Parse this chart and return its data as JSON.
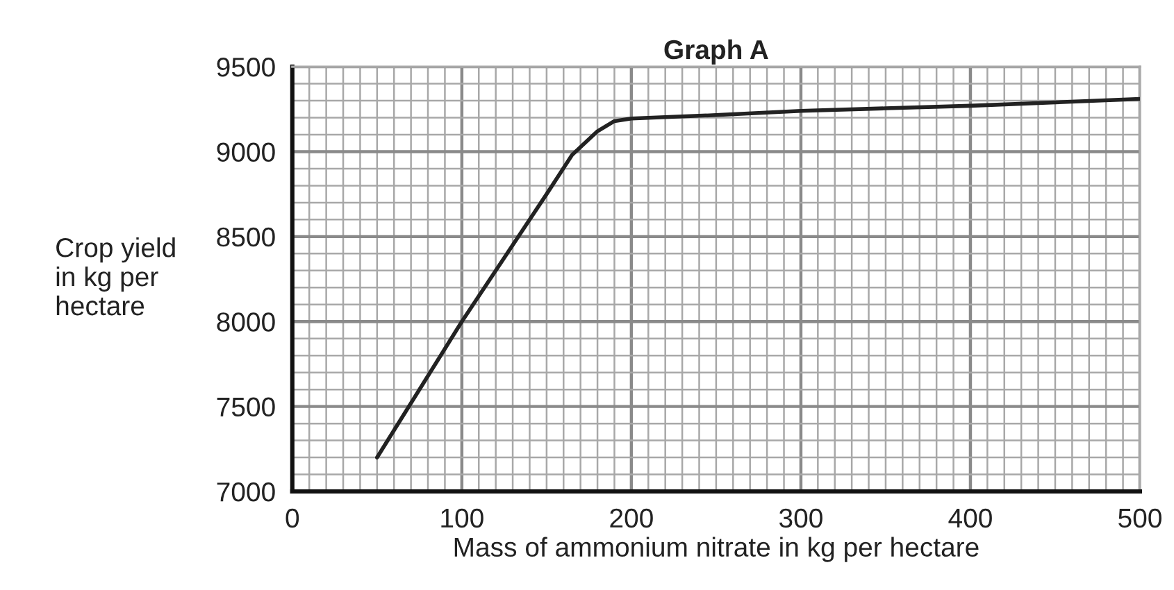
{
  "chart_data": {
    "type": "line",
    "title": "Graph A",
    "xlabel": "Mass of ammonium nitrate in kg per hectare",
    "ylabel": "Crop yield\nin kg per\nhectare",
    "series": [
      {
        "color": "#222222",
        "x": [
          50,
          100,
          150,
          165,
          180,
          190,
          200,
          250,
          300,
          350,
          400,
          450,
          500
        ],
        "values": [
          7200,
          8000,
          8750,
          8980,
          9120,
          9180,
          9195,
          9215,
          9240,
          9255,
          9270,
          9290,
          9310
        ]
      }
    ],
    "xlim": [
      0,
      500
    ],
    "ylim": [
      7000,
      9500
    ],
    "xticks": [
      0,
      100,
      200,
      300,
      400,
      500
    ],
    "yticks": [
      7000,
      7500,
      8000,
      8500,
      9000,
      9500
    ],
    "grid": true,
    "marker": "none",
    "line_style": "solid",
    "legend": false
  }
}
